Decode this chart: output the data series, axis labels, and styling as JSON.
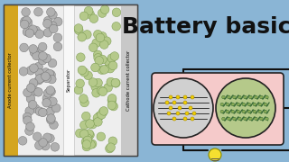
{
  "bg_color": "#8ab5d5",
  "title": "Battery basics",
  "title_color": "#111111",
  "title_fontsize": 18,
  "left_panel_bg": "#eeeeee",
  "left_panel_border": "#444444",
  "anode_collector_color": "#d4a520",
  "separator_color": "#f8f8f8",
  "anode_sphere_color": "#b0b0b0",
  "anode_sphere_edge": "#777777",
  "cathode_sphere_color": "#b5c98a",
  "cathode_sphere_edge": "#7a9a50",
  "left_label_anode": "Anode current collector",
  "left_label_separator": "Separator",
  "left_label_cathode": "Cathode current collector",
  "right_panel_bg": "#f5caca",
  "right_panel_border": "#222222",
  "anode_circle_bg": "#d0d0d0",
  "cathode_circle_bg": "#b5c98a",
  "circuit_color": "#111111",
  "bulb_color": "#f5e030",
  "graphite_color": "#333333",
  "li_ion_color": "#f0d000",
  "chain_color": "#336633"
}
